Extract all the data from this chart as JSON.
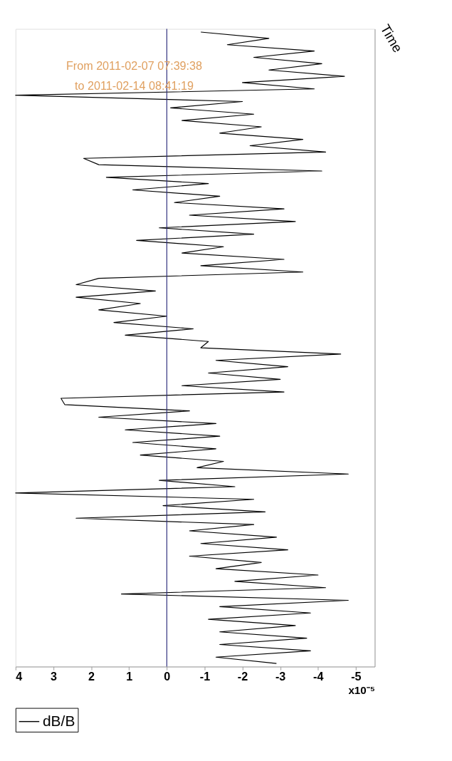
{
  "chart_data": {
    "type": "line",
    "orientation": "horizontal",
    "ylabel": "Time",
    "xlabel": "x10⁻⁵",
    "annotations": [
      "From 2011-02-07 07:39:38",
      "to 2011-02-14 08:41:19"
    ],
    "categories": [
      null,
      null,
      null,
      null,
      null,
      null,
      null,
      null,
      null,
      null,
      null,
      null,
      null,
      null,
      null,
      null,
      null,
      null,
      null,
      null,
      null,
      null,
      null,
      null,
      null,
      null,
      null,
      null,
      null,
      null,
      null,
      null,
      null,
      null,
      null,
      null,
      null,
      null,
      null,
      null,
      null,
      null,
      null,
      null,
      null,
      null,
      null,
      null,
      null,
      null,
      null,
      null,
      null,
      null,
      null,
      null,
      null,
      null,
      null,
      null,
      null,
      null,
      null,
      null,
      null,
      null,
      null,
      null,
      null,
      null,
      null,
      null,
      null,
      null,
      null,
      null,
      null,
      null,
      null,
      null,
      null,
      null,
      null,
      null,
      null,
      null,
      null,
      null,
      null,
      null,
      null,
      null,
      null,
      null,
      null,
      null,
      null,
      null,
      null,
      null,
      null
    ],
    "series": [
      {
        "name": "dB/B",
        "color": "#000000",
        "values": [
          -0.9,
          -2.7,
          -1.6,
          -3.9,
          -2.3,
          -4.1,
          -2.7,
          -4.7,
          -2.0,
          -3.9,
          4.0,
          -2.0,
          -0.1,
          -2.3,
          -0.4,
          -2.5,
          -1.4,
          -3.6,
          -2.2,
          -4.2,
          2.2,
          1.8,
          -4.1,
          1.6,
          -1.1,
          0.9,
          -1.4,
          -0.2,
          -3.1,
          -0.6,
          -3.4,
          0.2,
          -2.3,
          0.8,
          -1.5,
          -0.4,
          -3.1,
          -0.9,
          -3.6,
          1.8,
          2.4,
          0.3,
          2.4,
          0.7,
          1.8,
          0.0,
          1.4,
          -0.7,
          1.1,
          -1.1,
          -0.9,
          -4.6,
          -1.3,
          -3.2,
          -1.1,
          -3.0,
          -0.4,
          -3.1,
          2.8,
          2.7,
          -0.6,
          1.8,
          -1.3,
          1.1,
          -1.4,
          0.9,
          -1.3,
          0.7,
          -1.5,
          -0.8,
          -4.8,
          0.2,
          -1.8,
          4.0,
          -2.3,
          0.1,
          -2.6,
          2.4,
          -2.3,
          -0.6,
          -2.9,
          -0.9,
          -3.2,
          -0.6,
          -2.5,
          -1.3,
          -4.0,
          -1.8,
          -4.2,
          1.2,
          -4.8,
          -1.4,
          -3.8,
          -1.1,
          -3.4,
          -1.4,
          -3.7,
          -1.4,
          -3.8,
          -1.3,
          -2.9
        ]
      }
    ],
    "xlim": [
      4,
      -5.5
    ],
    "xticks": [
      4,
      3,
      2,
      1,
      0,
      -1,
      -2,
      -3,
      -4,
      -5
    ],
    "ref_lines": [
      {
        "axis": "x",
        "value": 0,
        "color": "#2b2b7a"
      }
    ],
    "tick_labels": "x",
    "legend": "bottom"
  }
}
